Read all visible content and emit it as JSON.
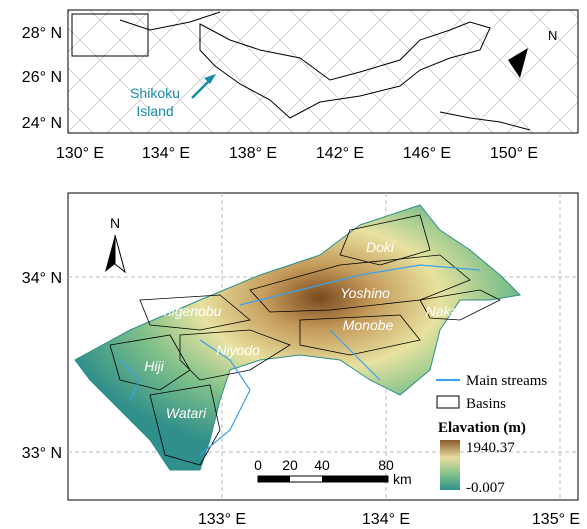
{
  "overview": {
    "lat_labels": [
      "28° N",
      "26° N",
      "24° N"
    ],
    "lon_labels": [
      "130° E",
      "134° E",
      "138° E",
      "142° E",
      "146° E",
      "150° E"
    ],
    "callout": [
      "Shikoku",
      "Island"
    ],
    "north": "N"
  },
  "detail": {
    "lat_labels": [
      "34° N",
      "33° N"
    ],
    "lon_labels": [
      "133° E",
      "134° E",
      "135° E"
    ],
    "north": "N",
    "basins": [
      "Doki",
      "Yoshino",
      "Shigenobu",
      "Niyodo",
      "Monobe",
      "Naka",
      "Hiji",
      "Watari"
    ],
    "legend": {
      "streams": "Main streams",
      "basins": "Basins"
    },
    "elevation": {
      "title": "Elavation (m)",
      "max": "1940.37",
      "min": "-0.007"
    },
    "scale": {
      "ticks": [
        "0",
        "20",
        "40",
        "80"
      ],
      "unit": "km"
    }
  }
}
